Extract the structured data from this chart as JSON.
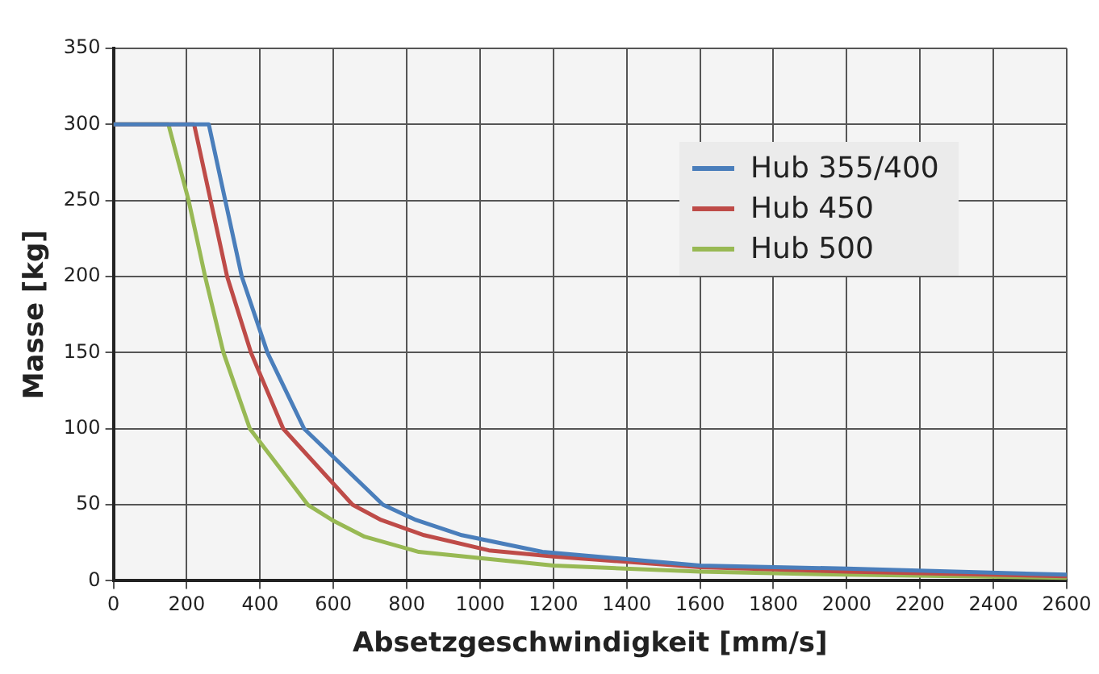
{
  "chart_data": {
    "type": "line",
    "xlabel": "Absetzgeschwindigkeit [mm/s]",
    "ylabel": "Masse [kg]",
    "xlim": [
      0,
      2600
    ],
    "xticks": [
      0,
      200,
      400,
      600,
      800,
      1000,
      1200,
      1400,
      1600,
      1800,
      2000,
      2200,
      2400,
      2600
    ],
    "ylim": [
      0,
      350
    ],
    "yticks": [
      0,
      50,
      100,
      150,
      200,
      250,
      300,
      350
    ],
    "grid": true,
    "legend": "top right",
    "marker": "none",
    "series": [
      {
        "name": "Hub 355/400",
        "color": "#4a7ebb",
        "x": [
          0,
          260,
          350,
          420,
          520,
          735,
          825,
          950,
          1170,
          1600,
          2000,
          2600
        ],
        "values": [
          300,
          300,
          200,
          150,
          100,
          50,
          40,
          30,
          19,
          10,
          8,
          4
        ]
      },
      {
        "name": "Hub 450",
        "color": "#be4b48",
        "x": [
          0,
          220,
          310,
          375,
          463,
          652,
          730,
          847,
          1024,
          1200,
          1600,
          2000,
          2600
        ],
        "values": [
          300,
          300,
          200,
          150,
          100,
          50,
          40,
          30,
          20,
          16,
          9,
          6,
          3
        ]
      },
      {
        "name": "Hub 500",
        "color": "#98b954",
        "x": [
          0,
          150,
          205,
          250,
          300,
          372,
          530,
          596,
          685,
          833,
          1200,
          1600,
          2000,
          2600
        ],
        "values": [
          300,
          300,
          250,
          200,
          150,
          100,
          50,
          40,
          29,
          19,
          10,
          6,
          4,
          2
        ]
      }
    ]
  }
}
